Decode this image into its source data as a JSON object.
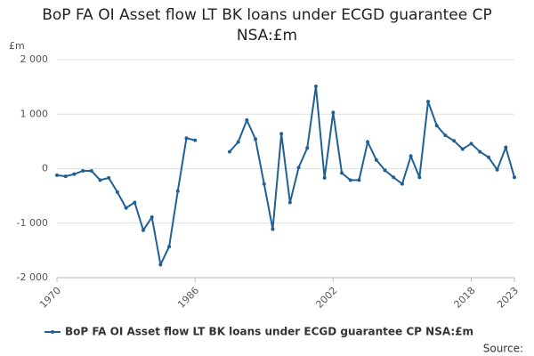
{
  "chart_data": {
    "type": "line",
    "title": "BoP FA OI Asset flow LT BK loans under ECGD guarantee CP NSA:£m",
    "y_unit": "£m",
    "source": "Source:",
    "x": [
      1970,
      1971,
      1972,
      1973,
      1974,
      1975,
      1976,
      1977,
      1978,
      1979,
      1980,
      1981,
      1982,
      1983,
      1984,
      1985,
      1986,
      1987,
      1988,
      1989,
      1990,
      1991,
      1992,
      1993,
      1994,
      1995,
      1996,
      1997,
      1998,
      1999,
      2000,
      2001,
      2002,
      2003,
      2004,
      2005,
      2006,
      2007,
      2008,
      2009,
      2010,
      2011,
      2012,
      2013,
      2014,
      2015,
      2016,
      2017,
      2018,
      2019,
      2020,
      2021,
      2022,
      2023
    ],
    "series": [
      {
        "name": "BoP FA OI Asset flow LT BK loans under ECGD guarantee CP NSA:£m",
        "color": "#206095",
        "values": [
          -120,
          -140,
          -100,
          -40,
          -40,
          -210,
          -170,
          -430,
          -720,
          -620,
          -1130,
          -890,
          -1760,
          -1430,
          -410,
          560,
          520,
          null,
          null,
          null,
          310,
          490,
          890,
          540,
          -280,
          -1110,
          640,
          -620,
          20,
          380,
          1510,
          -170,
          1030,
          -80,
          -210,
          -210,
          490,
          160,
          -30,
          -160,
          -280,
          230,
          -160,
          1230,
          790,
          610,
          510,
          360,
          460,
          310,
          210,
          -20,
          390,
          -160
        ]
      }
    ],
    "xlim": [
      1970,
      2023
    ],
    "xticks": [
      1970,
      1986,
      2002,
      2018,
      2023
    ],
    "ylim": [
      -2000,
      2000
    ],
    "yticks": [
      {
        "value": -2000,
        "label": "-2 000"
      },
      {
        "value": -1000,
        "label": "-1 000"
      },
      0,
      {
        "value": 1000,
        "label": "1 000"
      },
      {
        "value": 2000,
        "label": "2 000"
      }
    ],
    "grid": true
  }
}
